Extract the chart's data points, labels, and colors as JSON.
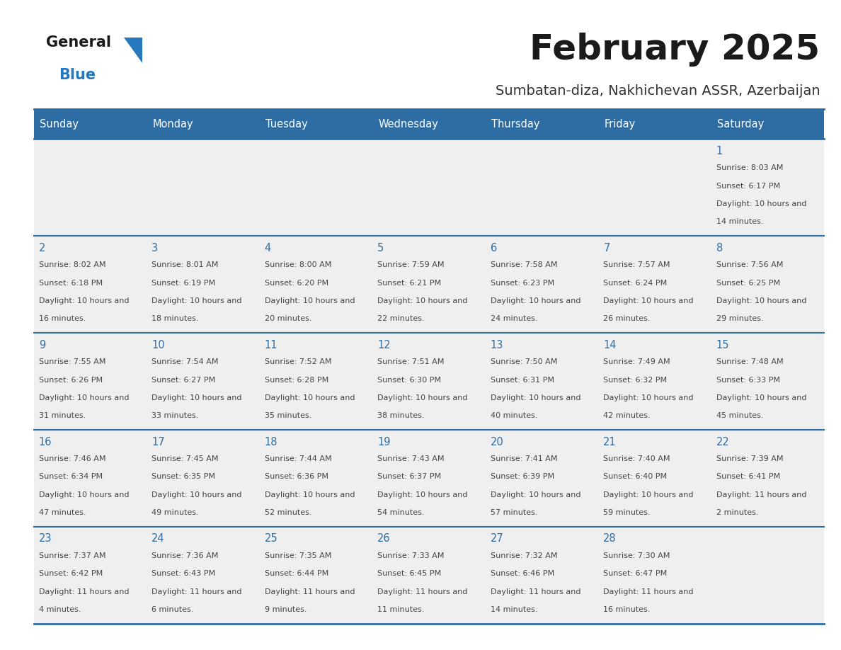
{
  "title": "February 2025",
  "subtitle": "Sumbatan-diza, Nakhichevan ASSR, Azerbaijan",
  "header_bg": "#2E6DA4",
  "header_text": "#FFFFFF",
  "cell_bg": "#EFEFEF",
  "line_color": "#2E6DA4",
  "date_color": "#2E6DA4",
  "text_color": "#444444",
  "logo_general_color": "#1a1a1a",
  "logo_blue_color": "#2878BE",
  "day_headers": [
    "Sunday",
    "Monday",
    "Tuesday",
    "Wednesday",
    "Thursday",
    "Friday",
    "Saturday"
  ],
  "days": [
    {
      "date": 1,
      "col": 6,
      "row": 0,
      "sunrise": "8:03 AM",
      "sunset": "6:17 PM",
      "daylight": "10 hours and 14 minutes."
    },
    {
      "date": 2,
      "col": 0,
      "row": 1,
      "sunrise": "8:02 AM",
      "sunset": "6:18 PM",
      "daylight": "10 hours and 16 minutes."
    },
    {
      "date": 3,
      "col": 1,
      "row": 1,
      "sunrise": "8:01 AM",
      "sunset": "6:19 PM",
      "daylight": "10 hours and 18 minutes."
    },
    {
      "date": 4,
      "col": 2,
      "row": 1,
      "sunrise": "8:00 AM",
      "sunset": "6:20 PM",
      "daylight": "10 hours and 20 minutes."
    },
    {
      "date": 5,
      "col": 3,
      "row": 1,
      "sunrise": "7:59 AM",
      "sunset": "6:21 PM",
      "daylight": "10 hours and 22 minutes."
    },
    {
      "date": 6,
      "col": 4,
      "row": 1,
      "sunrise": "7:58 AM",
      "sunset": "6:23 PM",
      "daylight": "10 hours and 24 minutes."
    },
    {
      "date": 7,
      "col": 5,
      "row": 1,
      "sunrise": "7:57 AM",
      "sunset": "6:24 PM",
      "daylight": "10 hours and 26 minutes."
    },
    {
      "date": 8,
      "col": 6,
      "row": 1,
      "sunrise": "7:56 AM",
      "sunset": "6:25 PM",
      "daylight": "10 hours and 29 minutes."
    },
    {
      "date": 9,
      "col": 0,
      "row": 2,
      "sunrise": "7:55 AM",
      "sunset": "6:26 PM",
      "daylight": "10 hours and 31 minutes."
    },
    {
      "date": 10,
      "col": 1,
      "row": 2,
      "sunrise": "7:54 AM",
      "sunset": "6:27 PM",
      "daylight": "10 hours and 33 minutes."
    },
    {
      "date": 11,
      "col": 2,
      "row": 2,
      "sunrise": "7:52 AM",
      "sunset": "6:28 PM",
      "daylight": "10 hours and 35 minutes."
    },
    {
      "date": 12,
      "col": 3,
      "row": 2,
      "sunrise": "7:51 AM",
      "sunset": "6:30 PM",
      "daylight": "10 hours and 38 minutes."
    },
    {
      "date": 13,
      "col": 4,
      "row": 2,
      "sunrise": "7:50 AM",
      "sunset": "6:31 PM",
      "daylight": "10 hours and 40 minutes."
    },
    {
      "date": 14,
      "col": 5,
      "row": 2,
      "sunrise": "7:49 AM",
      "sunset": "6:32 PM",
      "daylight": "10 hours and 42 minutes."
    },
    {
      "date": 15,
      "col": 6,
      "row": 2,
      "sunrise": "7:48 AM",
      "sunset": "6:33 PM",
      "daylight": "10 hours and 45 minutes."
    },
    {
      "date": 16,
      "col": 0,
      "row": 3,
      "sunrise": "7:46 AM",
      "sunset": "6:34 PM",
      "daylight": "10 hours and 47 minutes."
    },
    {
      "date": 17,
      "col": 1,
      "row": 3,
      "sunrise": "7:45 AM",
      "sunset": "6:35 PM",
      "daylight": "10 hours and 49 minutes."
    },
    {
      "date": 18,
      "col": 2,
      "row": 3,
      "sunrise": "7:44 AM",
      "sunset": "6:36 PM",
      "daylight": "10 hours and 52 minutes."
    },
    {
      "date": 19,
      "col": 3,
      "row": 3,
      "sunrise": "7:43 AM",
      "sunset": "6:37 PM",
      "daylight": "10 hours and 54 minutes."
    },
    {
      "date": 20,
      "col": 4,
      "row": 3,
      "sunrise": "7:41 AM",
      "sunset": "6:39 PM",
      "daylight": "10 hours and 57 minutes."
    },
    {
      "date": 21,
      "col": 5,
      "row": 3,
      "sunrise": "7:40 AM",
      "sunset": "6:40 PM",
      "daylight": "10 hours and 59 minutes."
    },
    {
      "date": 22,
      "col": 6,
      "row": 3,
      "sunrise": "7:39 AM",
      "sunset": "6:41 PM",
      "daylight": "11 hours and 2 minutes."
    },
    {
      "date": 23,
      "col": 0,
      "row": 4,
      "sunrise": "7:37 AM",
      "sunset": "6:42 PM",
      "daylight": "11 hours and 4 minutes."
    },
    {
      "date": 24,
      "col": 1,
      "row": 4,
      "sunrise": "7:36 AM",
      "sunset": "6:43 PM",
      "daylight": "11 hours and 6 minutes."
    },
    {
      "date": 25,
      "col": 2,
      "row": 4,
      "sunrise": "7:35 AM",
      "sunset": "6:44 PM",
      "daylight": "11 hours and 9 minutes."
    },
    {
      "date": 26,
      "col": 3,
      "row": 4,
      "sunrise": "7:33 AM",
      "sunset": "6:45 PM",
      "daylight": "11 hours and 11 minutes."
    },
    {
      "date": 27,
      "col": 4,
      "row": 4,
      "sunrise": "7:32 AM",
      "sunset": "6:46 PM",
      "daylight": "11 hours and 14 minutes."
    },
    {
      "date": 28,
      "col": 5,
      "row": 4,
      "sunrise": "7:30 AM",
      "sunset": "6:47 PM",
      "daylight": "11 hours and 16 minutes."
    }
  ],
  "num_rows": 5,
  "fig_width": 11.88,
  "fig_height": 9.18,
  "dpi": 100
}
